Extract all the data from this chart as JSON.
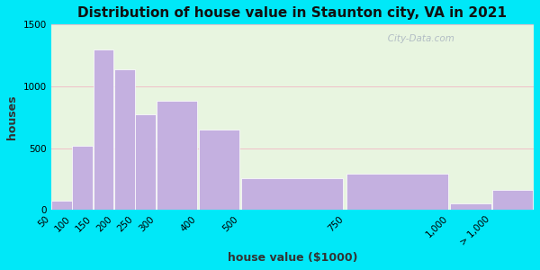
{
  "title": "Distribution of house value in Staunton city, VA in 2021",
  "xlabel": "house value ($1000)",
  "ylabel": "houses",
  "bar_left_edges": [
    50,
    100,
    150,
    200,
    250,
    300,
    400,
    500,
    750,
    1000,
    1100
  ],
  "bar_widths": [
    50,
    50,
    50,
    50,
    50,
    100,
    100,
    250,
    250,
    100,
    100
  ],
  "bar_values": [
    75,
    520,
    1300,
    1140,
    775,
    880,
    650,
    255,
    295,
    50,
    165
  ],
  "bar_color": "#c4b0e0",
  "bar_edge_color": "#ffffff",
  "ylim": [
    0,
    1500
  ],
  "yticks": [
    0,
    500,
    1000,
    1500
  ],
  "tick_positions": [
    50,
    100,
    150,
    200,
    250,
    300,
    400,
    500,
    750,
    1000,
    1100
  ],
  "tick_labels": [
    "50",
    "100",
    "150",
    "200",
    "250",
    "300",
    "400",
    "500",
    "750",
    "1,000",
    "> 1,000"
  ],
  "bg_color_outer": "#00e8f8",
  "bg_color_plot": "#e8f5e0",
  "watermark": "   City-Data.com",
  "title_fontsize": 11,
  "axis_label_fontsize": 9,
  "tick_fontsize": 7.5
}
